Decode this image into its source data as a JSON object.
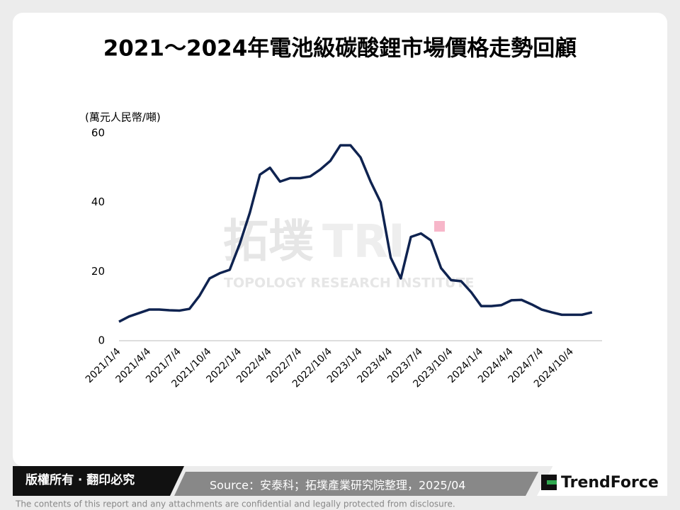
{
  "chart_data": {
    "type": "line",
    "title": "2021～2024年電池級碳酸鋰市場價格走勢回顧",
    "y_label": "(萬元人民幣/噸)",
    "categories": [
      "2021/1/4",
      null,
      null,
      "2021/4/4",
      null,
      null,
      "2021/7/4",
      null,
      null,
      "2021/10/4",
      null,
      null,
      "2022/1/4",
      null,
      null,
      "2022/4/4",
      null,
      null,
      "2022/7/4",
      null,
      null,
      "2022/10/4",
      null,
      null,
      "2023/1/4",
      null,
      null,
      "2023/4/4",
      null,
      null,
      "2023/7/4",
      null,
      null,
      "2023/10/4",
      null,
      null,
      "2024/1/4",
      null,
      null,
      "2024/4/4",
      null,
      null,
      "2024/7/4",
      null,
      null,
      "2024/10/4",
      null,
      null
    ],
    "series": [
      {
        "name": "電池級碳酸鋰",
        "color": "#0f2350",
        "values": [
          5.5,
          7,
          8,
          9,
          9,
          8.8,
          8.7,
          9.2,
          13,
          18,
          19.5,
          20.5,
          28,
          37,
          48,
          50,
          46,
          47,
          47,
          47.5,
          49.5,
          52,
          56.5,
          56.5,
          53,
          46,
          40,
          24,
          18,
          30,
          31,
          29,
          21,
          17.5,
          17.2,
          14,
          10,
          10,
          10.3,
          11.7,
          11.8,
          10.5,
          9,
          8.2,
          7.5,
          7.5,
          7.5,
          8.2
        ]
      }
    ],
    "ylim": [
      0,
      60
    ],
    "yticks": [
      0,
      20,
      40,
      60
    ],
    "grid": false
  },
  "watermark": {
    "name": "拓墣",
    "abbr": "TRI",
    "org": "TOPOLOGY RESEARCH INSTITUTE"
  },
  "footer": {
    "copyright": "版權所有 · 翻印必究",
    "source": "Source：安泰科；拓墣產業研究院整理，2025/04",
    "brand": "TrendForce",
    "disclaimer": "The contents of this report and any attachments are confidential and legally protected from disclosure."
  }
}
